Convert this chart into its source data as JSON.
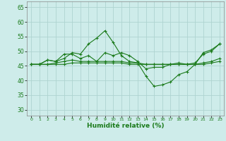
{
  "xlabel": "Humidité relative (%)",
  "background_color": "#ceecea",
  "grid_color": "#aed4d0",
  "line_color": "#1a7a1a",
  "xlim": [
    -0.5,
    23.5
  ],
  "ylim": [
    28,
    67
  ],
  "yticks": [
    30,
    35,
    40,
    45,
    50,
    55,
    60,
    65
  ],
  "xticks": [
    0,
    1,
    2,
    3,
    4,
    5,
    6,
    7,
    8,
    9,
    10,
    11,
    12,
    13,
    14,
    15,
    16,
    17,
    18,
    19,
    20,
    21,
    22,
    23
  ],
  "series": [
    [
      45.5,
      45.5,
      47.0,
      46.5,
      47.5,
      49.5,
      49.0,
      52.5,
      54.5,
      57.0,
      53.0,
      48.5,
      46.5,
      46.0,
      41.5,
      38.0,
      38.5,
      39.5,
      42.0,
      43.0,
      45.5,
      49.5,
      50.5,
      52.5
    ],
    [
      45.5,
      45.5,
      47.0,
      46.5,
      49.0,
      49.0,
      47.5,
      48.5,
      46.5,
      49.5,
      48.5,
      49.5,
      48.5,
      46.5,
      44.0,
      44.5,
      44.5,
      45.5,
      46.0,
      45.5,
      46.0,
      49.0,
      50.0,
      52.5
    ],
    [
      45.5,
      45.5,
      45.5,
      46.0,
      46.5,
      47.0,
      46.5,
      46.5,
      46.5,
      46.5,
      46.5,
      46.5,
      46.0,
      46.0,
      45.5,
      45.5,
      45.5,
      45.5,
      45.5,
      45.5,
      45.5,
      46.0,
      46.5,
      47.5
    ],
    [
      45.5,
      45.5,
      45.5,
      45.5,
      45.5,
      46.0,
      46.0,
      46.0,
      46.0,
      46.0,
      46.0,
      46.0,
      45.5,
      45.5,
      45.5,
      45.5,
      45.5,
      45.5,
      45.5,
      45.5,
      45.5,
      45.5,
      46.0,
      46.5
    ]
  ]
}
